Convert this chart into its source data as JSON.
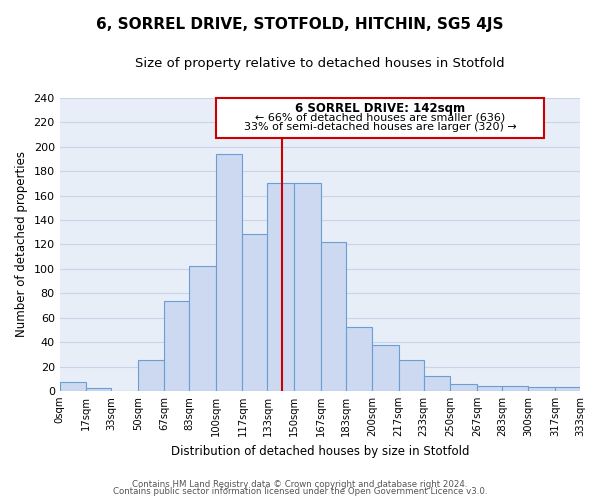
{
  "title": "6, SORREL DRIVE, STOTFOLD, HITCHIN, SG5 4JS",
  "subtitle": "Size of property relative to detached houses in Stotfold",
  "xlabel": "Distribution of detached houses by size in Stotfold",
  "ylabel": "Number of detached properties",
  "bar_edges": [
    0,
    17,
    33,
    50,
    67,
    83,
    100,
    117,
    133,
    150,
    167,
    183,
    200,
    217,
    233,
    250,
    267,
    283,
    300,
    317,
    333
  ],
  "bar_heights": [
    7,
    2,
    0,
    25,
    74,
    102,
    194,
    129,
    170,
    170,
    122,
    52,
    38,
    25,
    12,
    6,
    4,
    4,
    3,
    3
  ],
  "bar_color": "#ccd9f0",
  "bar_edge_color": "#6b9fd4",
  "vline_x": 142,
  "vline_color": "#cc0000",
  "annotation_title": "6 SORREL DRIVE: 142sqm",
  "annotation_line1": "← 66% of detached houses are smaller (636)",
  "annotation_line2": "33% of semi-detached houses are larger (320) →",
  "annotation_box_color": "#ffffff",
  "annotation_box_edge": "#cc0000",
  "ylim": [
    0,
    240
  ],
  "tick_labels": [
    "0sqm",
    "17sqm",
    "33sqm",
    "50sqm",
    "67sqm",
    "83sqm",
    "100sqm",
    "117sqm",
    "133sqm",
    "150sqm",
    "167sqm",
    "183sqm",
    "200sqm",
    "217sqm",
    "233sqm",
    "250sqm",
    "267sqm",
    "283sqm",
    "300sqm",
    "317sqm",
    "333sqm"
  ],
  "yticks": [
    0,
    20,
    40,
    60,
    80,
    100,
    120,
    140,
    160,
    180,
    200,
    220,
    240
  ],
  "footer1": "Contains HM Land Registry data © Crown copyright and database right 2024.",
  "footer2": "Contains public sector information licensed under the Open Government Licence v3.0.",
  "bg_color": "#ffffff",
  "plot_bg_color": "#e8eef8",
  "grid_color": "#c8d4e8",
  "title_fontsize": 11,
  "subtitle_fontsize": 9.5
}
